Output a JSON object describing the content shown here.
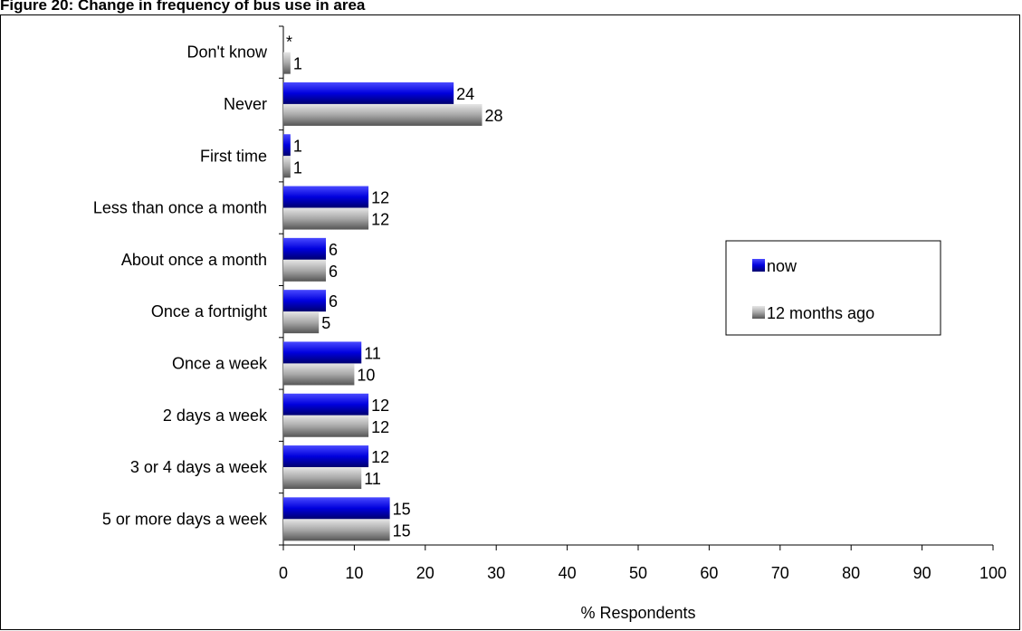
{
  "figure": {
    "title": "Figure 20: Change in frequency of bus use in area"
  },
  "chart_data": {
    "type": "bar",
    "orientation": "horizontal",
    "categories": [
      "Don't know",
      "Never",
      "First time",
      "Less than once a month",
      "About once a month",
      "Once a fortnight",
      "Once a week",
      "2 days a week",
      "3 or 4 days a week",
      "5 or more days a week"
    ],
    "series": [
      {
        "name": "now",
        "color": "#1a1aff",
        "values": [
          0,
          24,
          1,
          12,
          6,
          6,
          11,
          12,
          12,
          15
        ],
        "labels": [
          "*",
          "24",
          "1",
          "12",
          "6",
          "6",
          "11",
          "12",
          "12",
          "15"
        ]
      },
      {
        "name": "12 months ago",
        "color": "#9a9a9a",
        "values": [
          1,
          28,
          1,
          12,
          6,
          5,
          10,
          12,
          11,
          15
        ],
        "labels": [
          "1",
          "28",
          "1",
          "12",
          "6",
          "5",
          "10",
          "12",
          "11",
          "15"
        ]
      }
    ],
    "xlabel": "% Respondents",
    "ylabel": "",
    "xlim": [
      0,
      100
    ],
    "xticks": [
      0,
      10,
      20,
      30,
      40,
      50,
      60,
      70,
      80,
      90,
      100
    ],
    "grid": false,
    "legend_position": "right"
  }
}
